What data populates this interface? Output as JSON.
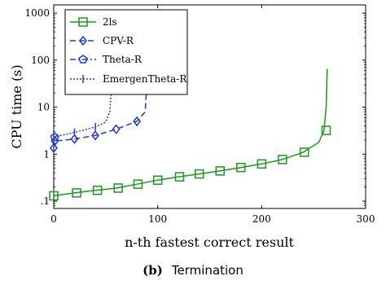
{
  "chart_data": {
    "type": "line",
    "xlabel": "n-th fastest correct result",
    "ylabel": "CPU time (s)",
    "xlim": [
      0,
      300
    ],
    "ylim": [
      0.07,
      1500
    ],
    "yscale": "log",
    "grid": false,
    "legend_position": "top-left",
    "x_ticks": [
      0,
      100,
      200,
      300
    ],
    "x_tick_labels": [
      "0",
      "100",
      "200",
      "300"
    ],
    "y_ticks": [
      0.1,
      1,
      10,
      100,
      1000
    ],
    "y_tick_labels": [
      ".1",
      "1",
      "10",
      "100",
      "1000"
    ],
    "series": [
      {
        "name": "2ls",
        "color": "#1a9a1a",
        "dash": "",
        "marker": "square",
        "x": [
          0,
          20,
          40,
          60,
          80,
          100,
          120,
          140,
          160,
          180,
          200,
          220,
          240,
          255,
          260,
          262,
          263
        ],
        "y": [
          0.13,
          0.15,
          0.17,
          0.19,
          0.23,
          0.28,
          0.33,
          0.38,
          0.44,
          0.52,
          0.62,
          0.77,
          1.1,
          1.8,
          3.2,
          10,
          65
        ],
        "marker_x": [
          0,
          22,
          42,
          62,
          81,
          100,
          121,
          140,
          160,
          180,
          200,
          220,
          241,
          262
        ],
        "marker_y": [
          0.13,
          0.15,
          0.17,
          0.19,
          0.23,
          0.28,
          0.33,
          0.38,
          0.44,
          0.52,
          0.62,
          0.77,
          1.1,
          3.2
        ]
      },
      {
        "name": "CPV-R",
        "color": "#1f3ad6",
        "dash": "7,4",
        "marker": "diamond",
        "x": [
          0,
          1,
          20,
          40,
          60,
          80,
          88,
          90,
          92,
          100
        ],
        "y": [
          1.35,
          1.9,
          2.1,
          2.5,
          3.4,
          5.0,
          8,
          50,
          280,
          320
        ],
        "marker_x": [
          0,
          1,
          20,
          40,
          60,
          80,
          101
        ],
        "marker_y": [
          1.35,
          1.9,
          2.1,
          2.5,
          3.4,
          5.0,
          320
        ]
      },
      {
        "name": "Theta-R",
        "color": "#1f3ad6",
        "dash": "7,3,2,3",
        "marker": "pentagon",
        "x": [
          0,
          1,
          3
        ],
        "y": [
          2.1,
          2.3,
          2.5
        ],
        "marker_x": [
          1
        ],
        "marker_y": [
          2.3
        ]
      },
      {
        "name": "EmergenTheta-R",
        "color": "#1f3ad6",
        "dash": "2,2",
        "marker": "plus",
        "x": [
          0,
          10,
          20,
          30,
          40,
          50,
          54,
          56,
          57,
          58
        ],
        "y": [
          2.3,
          2.6,
          2.9,
          3.3,
          3.8,
          4.8,
          8,
          40,
          300,
          600
        ],
        "marker_x": [
          0,
          20,
          40
        ],
        "marker_y": [
          2.3,
          2.9,
          3.8
        ]
      }
    ]
  },
  "legend_labels": {
    "s0": "2ls",
    "s1": "CPV-R",
    "s2": "Theta-R",
    "s3": "EmergenTheta-R"
  },
  "caption": {
    "prefix": "(b)",
    "text": "Termination"
  }
}
